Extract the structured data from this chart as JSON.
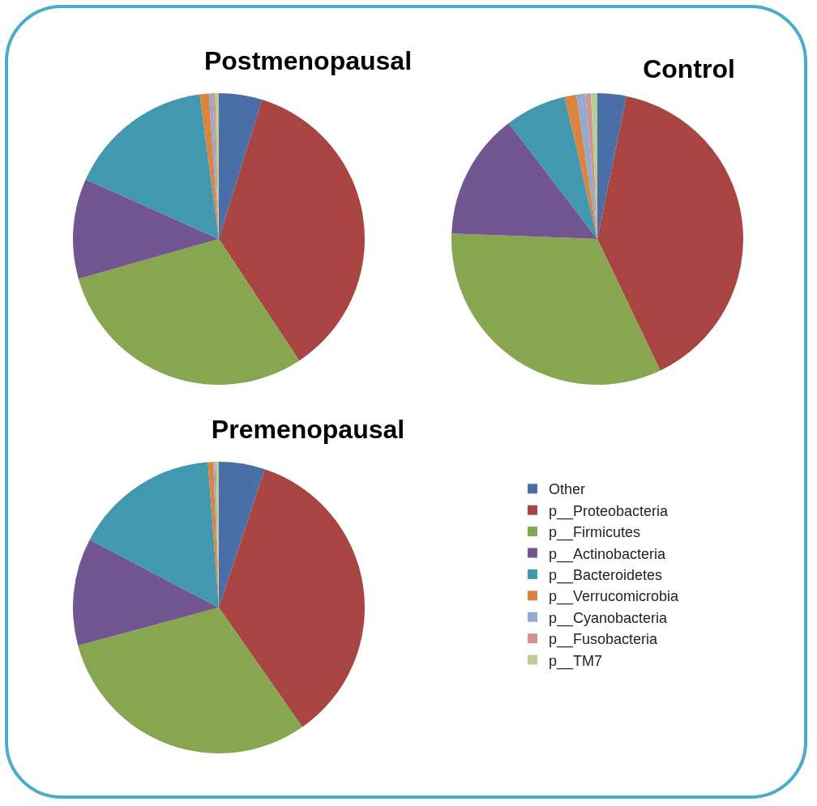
{
  "chart_data": [
    {
      "type": "pie",
      "title": "Postmenopausal",
      "legend": false,
      "values": [
        4.8,
        35.9,
        29.9,
        11.1,
        16.2,
        1.0,
        0.4,
        0.3,
        0.4
      ],
      "colors": [
        "#4a6ea8",
        "#a84442",
        "#88a550",
        "#715690",
        "#4198af",
        "#db843d",
        "#93a9cf",
        "#d09392",
        "#b9cd96"
      ]
    },
    {
      "type": "pie",
      "title": "Control",
      "legend": false,
      "values": [
        3.2,
        39.7,
        32.7,
        14.0,
        6.8,
        1.3,
        1.0,
        0.6,
        0.7
      ],
      "colors": [
        "#4a6ea8",
        "#a84442",
        "#88a550",
        "#715690",
        "#4198af",
        "#db843d",
        "#93a9cf",
        "#d09392",
        "#b9cd96"
      ]
    },
    {
      "type": "pie",
      "title": "Premenopausal",
      "legend": "right",
      "categories": [
        "Other",
        "p__Proteobacteria",
        "p__Firmicutes",
        "p__Actinobacteria",
        "p__Bacteroidetes",
        "p__Verrucomicrobia",
        "p__Cyanobacteria",
        "p__Fusobacteria",
        "p__TM7"
      ],
      "values": [
        5.1,
        35.2,
        30.5,
        11.9,
        16.1,
        0.6,
        0.2,
        0.1,
        0.3
      ],
      "colors": [
        "#4a6ea8",
        "#a84442",
        "#88a550",
        "#715690",
        "#4198af",
        "#db843d",
        "#93a9cf",
        "#d09392",
        "#b9cd96"
      ]
    }
  ]
}
